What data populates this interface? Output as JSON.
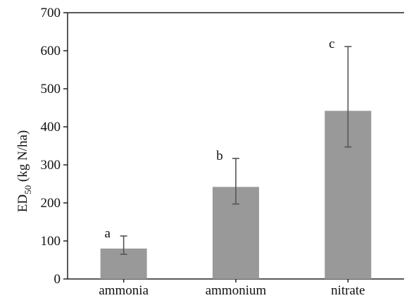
{
  "chart_data": {
    "type": "bar",
    "categories": [
      "ammonia",
      "ammonium",
      "nitrate"
    ],
    "values": [
      80,
      242,
      442
    ],
    "error_low": [
      65,
      197,
      347
    ],
    "error_high": [
      113,
      317,
      611
    ],
    "bar_labels": [
      "a",
      "b",
      "c"
    ],
    "ylabel": {
      "main": "ED",
      "sub": "50",
      "rest": " (kg N/ha)"
    },
    "xlabel": "",
    "title": "",
    "ylim": [
      0,
      700
    ],
    "yticks": [
      0,
      100,
      200,
      300,
      400,
      500,
      600,
      700
    ],
    "grid": false,
    "bar_color": "#999999",
    "error_color": "#555555",
    "axis_color": "#222222"
  }
}
